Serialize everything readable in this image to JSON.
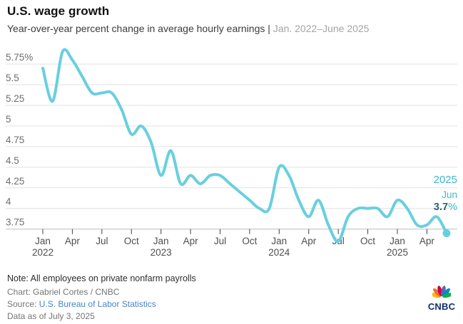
{
  "header": {
    "title": "U.S. wage growth",
    "subtitle_main": "Year-over-year percent change in average hourly earnings",
    "subtitle_separator": " | ",
    "subtitle_range": "Jan. 2022–June 2025"
  },
  "chart_data": {
    "type": "line",
    "title": "U.S. wage growth",
    "ylabel": "Year-over-year percent change in average hourly earnings",
    "categories": [
      "Jan 2022",
      "Feb 2022",
      "Mar 2022",
      "Apr 2022",
      "May 2022",
      "Jun 2022",
      "Jul 2022",
      "Aug 2022",
      "Sep 2022",
      "Oct 2022",
      "Nov 2022",
      "Dec 2022",
      "Jan 2023",
      "Feb 2023",
      "Mar 2023",
      "Apr 2023",
      "May 2023",
      "Jun 2023",
      "Jul 2023",
      "Aug 2023",
      "Sep 2023",
      "Oct 2023",
      "Nov 2023",
      "Dec 2023",
      "Jan 2024",
      "Feb 2024",
      "Mar 2024",
      "Apr 2024",
      "May 2024",
      "Jun 2024",
      "Jul 2024",
      "Aug 2024",
      "Sep 2024",
      "Oct 2024",
      "Nov 2024",
      "Dec 2024",
      "Jan 2025",
      "Feb 2025",
      "Mar 2025",
      "Apr 2025",
      "May 2025",
      "Jun 2025"
    ],
    "series": [
      {
        "name": "Average hourly earnings, YoY % change",
        "color": "#69cfdf",
        "values": [
          5.7,
          5.3,
          5.9,
          5.8,
          5.6,
          5.4,
          5.4,
          5.4,
          5.2,
          4.9,
          5.0,
          4.8,
          4.4,
          4.7,
          4.3,
          4.4,
          4.3,
          4.4,
          4.4,
          4.3,
          4.2,
          4.1,
          4.0,
          4.0,
          4.5,
          4.4,
          4.1,
          3.9,
          4.1,
          3.8,
          3.6,
          3.9,
          4.0,
          4.0,
          4.0,
          3.9,
          4.1,
          4.0,
          3.8,
          3.8,
          3.9,
          3.7
        ]
      }
    ],
    "y_ticks": [
      {
        "value": 5.75,
        "label": "5.75%"
      },
      {
        "value": 5.5,
        "label": "5.5"
      },
      {
        "value": 5.25,
        "label": "5.25"
      },
      {
        "value": 5.0,
        "label": "5"
      },
      {
        "value": 4.75,
        "label": "4.75"
      },
      {
        "value": 4.5,
        "label": "4.5"
      },
      {
        "value": 4.25,
        "label": "4.25"
      },
      {
        "value": 4.0,
        "label": "4"
      },
      {
        "value": 3.75,
        "label": "3.75"
      }
    ],
    "x_ticks": [
      {
        "index": 0,
        "label": "Jan",
        "year": "2022"
      },
      {
        "index": 3,
        "label": "Apr"
      },
      {
        "index": 6,
        "label": "Jul"
      },
      {
        "index": 9,
        "label": "Oct"
      },
      {
        "index": 12,
        "label": "Jan",
        "year": "2023"
      },
      {
        "index": 15,
        "label": "Apr"
      },
      {
        "index": 18,
        "label": "Jul"
      },
      {
        "index": 21,
        "label": "Oct"
      },
      {
        "index": 24,
        "label": "Jan",
        "year": "2024"
      },
      {
        "index": 27,
        "label": "Apr"
      },
      {
        "index": 30,
        "label": "Jul"
      },
      {
        "index": 33,
        "label": "Oct"
      },
      {
        "index": 36,
        "label": "Jan",
        "year": "2025"
      },
      {
        "index": 39,
        "label": "Apr"
      }
    ],
    "end_label": {
      "year": "2025",
      "month": "Jun",
      "value": "3.7",
      "suffix": "%",
      "text_color": "#3fb8cd",
      "value_color": "#2c6475"
    },
    "axis_range": [
      3.75,
      5.75
    ],
    "grid": true,
    "legend_position": "none"
  },
  "footer": {
    "note": "Note: All employees on private nonfarm payrolls",
    "credit": "Chart: Gabriel Cortes / CNBC",
    "source_label": "Source: ",
    "source_link": "U.S. Bureau of Labor Statistics",
    "link_color": "#4a84c4",
    "data_as_of": "Data as of July 3, 2025"
  },
  "logo": {
    "text": "CNBC",
    "wordmark_color": "#0e2f6e",
    "peacock_colors": [
      "#FCB711",
      "#F37021",
      "#CC004C",
      "#6460AA",
      "#0089D0",
      "#0DB14B"
    ]
  }
}
